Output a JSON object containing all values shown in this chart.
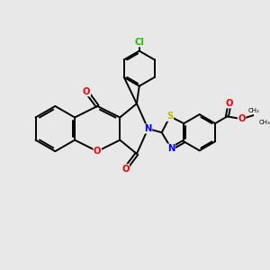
{
  "background_color": "#e8e8e8",
  "figsize": [
    3.0,
    3.0
  ],
  "dpi": 100,
  "atom_colors": {
    "C": "#000000",
    "N": "#0000ee",
    "O": "#ee0000",
    "S": "#bbbb00",
    "Cl": "#22bb00"
  },
  "bond_color": "#000000",
  "bond_width": 1.4
}
